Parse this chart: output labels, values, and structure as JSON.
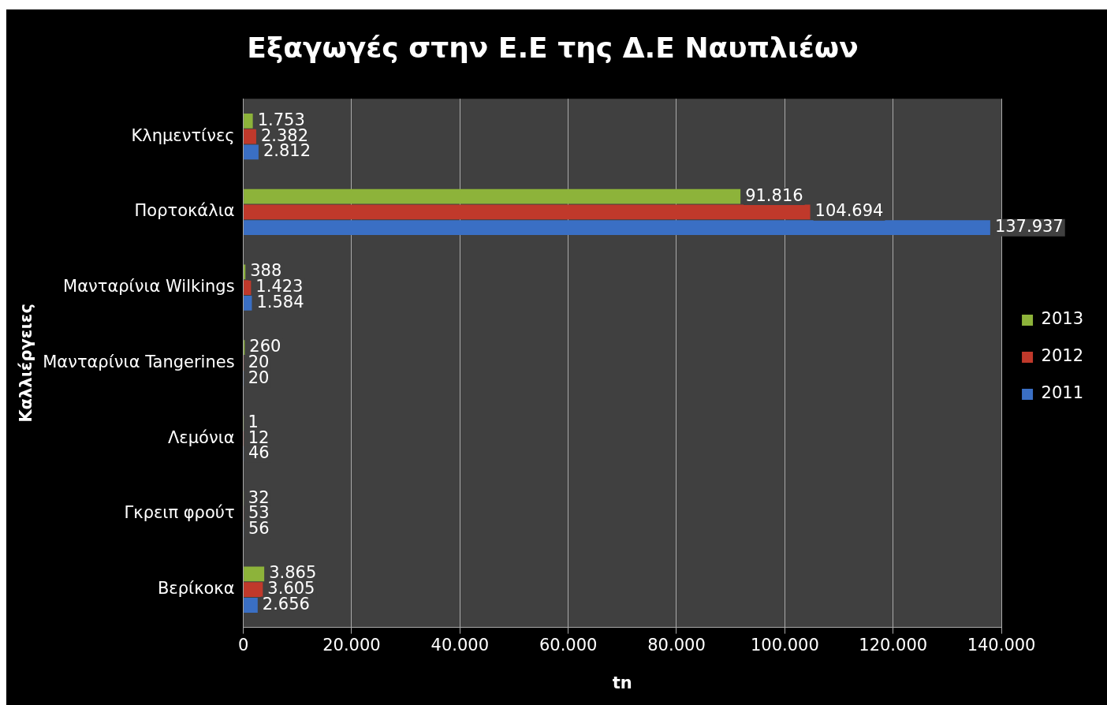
{
  "chart_data": {
    "type": "bar",
    "orientation": "horizontal",
    "title": "Εξαγωγές στην Ε.Ε της Δ.Ε Ναυπλιέων",
    "xlabel": "tn",
    "ylabel": "Καλλιέργειες",
    "categories": [
      "Κλημεντίνες",
      "Πορτοκάλια",
      "Μανταρίνια Wilkings",
      "Μανταρίνια Tangerines",
      "Λεμόνια",
      "Γκρειπ φρούτ",
      "Βερίκοκα"
    ],
    "series": [
      {
        "name": "2013",
        "color": "#8db33a",
        "values": [
          1753,
          91816,
          388,
          260,
          1,
          32,
          3865
        ],
        "value_labels": [
          "1.753",
          "91.816",
          "388",
          "260",
          "1",
          "32",
          "3.865"
        ]
      },
      {
        "name": "2012",
        "color": "#c0392b",
        "values": [
          2382,
          104694,
          1423,
          20,
          12,
          53,
          3605
        ],
        "value_labels": [
          "2.382",
          "104.694",
          "1.423",
          "20",
          "12",
          "53",
          "3.605"
        ]
      },
      {
        "name": "2011",
        "color": "#3a6fc4",
        "values": [
          2812,
          137937,
          1584,
          20,
          46,
          56,
          2656
        ],
        "value_labels": [
          "2.812",
          "137.937",
          "1.584",
          "20",
          "46",
          "56",
          "2.656"
        ]
      }
    ],
    "xlim": [
      0,
      140000
    ],
    "xticks": [
      {
        "value": 0,
        "label": "0"
      },
      {
        "value": 20000,
        "label": "20.000"
      },
      {
        "value": 40000,
        "label": "40.000"
      },
      {
        "value": 60000,
        "label": "60.000"
      },
      {
        "value": 80000,
        "label": "80.000"
      },
      {
        "value": 100000,
        "label": "100.000"
      },
      {
        "value": 120000,
        "label": "120.000"
      },
      {
        "value": 140000,
        "label": "140.000"
      }
    ],
    "grid": "x",
    "legend": "right"
  }
}
